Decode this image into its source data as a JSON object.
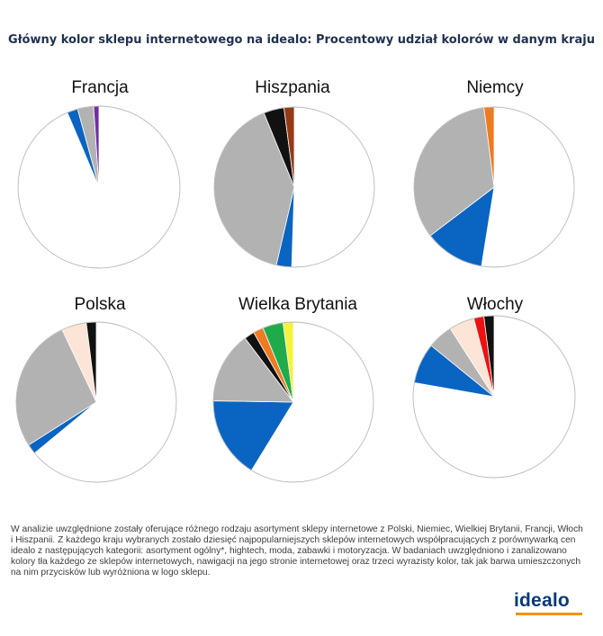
{
  "title": "Główny kolor sklepu internetowego na idealo: Procentowy udział kolorów w danym kraju",
  "note": "W analizie uwzględnione zostały oferujące różnego rodzaju asortyment sklepy internetowe z Polski, Niemiec, Wielkiej Brytanii, Francji, Włoch i Hiszpanii. Z każdego kraju wybranych zostało dziesięć najpopularniejszych sklepów internetowych współpracujących z porównywarką cen idealo z następujących kategorii: asortyment ogólny*, hightech, moda, zabawki i motoryzacja. W badaniach uwzględniono i zanalizowano kolory tła każdego ze sklepów internetowych, nawigacji na jego stronie internetowej oraz trzeci wyrazisty kolor, tak jak barwa umieszczonych na nim przycisków lub wyróżniona w logo sklepu.",
  "logo": {
    "text": "idealo",
    "bar_color": "#f39200",
    "text_color": "#0a3a78"
  },
  "chart_data": [
    {
      "type": "pie",
      "title": "Francja",
      "values": [
        88,
        2,
        3,
        1
      ],
      "colors": [
        "#ffffff",
        "#0a64c1",
        "#b2b2b2",
        "#7030a0"
      ]
    },
    {
      "type": "pie",
      "title": "Hiszpania",
      "values": [
        49,
        3,
        39,
        4,
        2
      ],
      "colors": [
        "#ffffff",
        "#0a64c1",
        "#b2b2b2",
        "#111111",
        "#953a16"
      ]
    },
    {
      "type": "pie",
      "title": "Niemcy",
      "values": [
        52,
        12,
        33,
        2
      ],
      "colors": [
        "#ffffff",
        "#0a64c1",
        "#b2b2b2",
        "#ee7a22"
      ]
    },
    {
      "type": "pie",
      "title": "Polska",
      "values": [
        64,
        2,
        27,
        5,
        2
      ],
      "colors": [
        "#ffffff",
        "#0a64c1",
        "#b2b2b2",
        "#fce4d6",
        "#111111"
      ]
    },
    {
      "type": "pie",
      "title": "Wielka Brytania",
      "values": [
        57,
        16,
        14,
        2,
        2,
        4,
        2
      ],
      "colors": [
        "#ffffff",
        "#0a64c1",
        "#b2b2b2",
        "#111111",
        "#ee7a22",
        "#1fab4a",
        "#f5f23c"
      ]
    },
    {
      "type": "pie",
      "title": "Włochy",
      "values": [
        77,
        8,
        5,
        5,
        2,
        2
      ],
      "colors": [
        "#ffffff",
        "#0a64c1",
        "#b2b2b2",
        "#fce4d6",
        "#ee1111",
        "#111111"
      ]
    }
  ]
}
